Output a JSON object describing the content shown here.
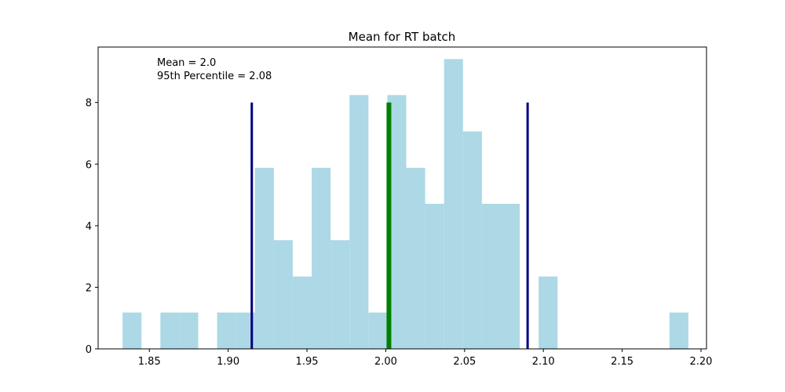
{
  "chart_data": {
    "type": "bar",
    "title": "Mean for RT batch",
    "xlabel": "",
    "ylabel": "",
    "xlim": [
      1.8175,
      2.2035
    ],
    "ylim": [
      0,
      9.8
    ],
    "xticks": [
      1.85,
      1.9,
      1.95,
      2.0,
      2.05,
      2.1,
      2.15,
      2.2
    ],
    "xtick_labels": [
      "1.85",
      "1.90",
      "1.95",
      "2.00",
      "2.05",
      "2.10",
      "2.15",
      "2.20"
    ],
    "yticks": [
      0,
      2,
      4,
      6,
      8
    ],
    "ytick_labels": [
      "0",
      "2",
      "4",
      "6",
      "8"
    ],
    "bar_color": "#add8e6",
    "histogram": {
      "bin_width": 0.012,
      "bins": [
        {
          "x0": 1.833,
          "value": 1.18
        },
        {
          "x0": 1.857,
          "value": 1.18
        },
        {
          "x0": 1.869,
          "value": 1.18
        },
        {
          "x0": 1.893,
          "value": 1.18
        },
        {
          "x0": 1.905,
          "value": 1.18
        },
        {
          "x0": 1.917,
          "value": 5.88
        },
        {
          "x0": 1.929,
          "value": 3.53
        },
        {
          "x0": 1.941,
          "value": 2.35
        },
        {
          "x0": 1.953,
          "value": 5.88
        },
        {
          "x0": 1.965,
          "value": 3.53
        },
        {
          "x0": 1.977,
          "value": 8.24
        },
        {
          "x0": 1.989,
          "value": 1.18
        },
        {
          "x0": 2.001,
          "value": 8.24
        },
        {
          "x0": 2.013,
          "value": 5.88
        },
        {
          "x0": 2.025,
          "value": 4.71
        },
        {
          "x0": 2.037,
          "value": 9.41
        },
        {
          "x0": 2.049,
          "value": 7.06
        },
        {
          "x0": 2.061,
          "value": 4.71
        },
        {
          "x0": 2.073,
          "value": 4.71
        },
        {
          "x0": 2.097,
          "value": 2.35
        },
        {
          "x0": 2.18,
          "value": 1.18
        }
      ]
    },
    "reference_lines": [
      {
        "x": 1.915,
        "y_top": 8.0,
        "color": "#000080",
        "width": 3
      },
      {
        "x": 2.002,
        "y_top": 8.0,
        "color": "#008000",
        "width": 6
      },
      {
        "x": 2.09,
        "y_top": 8.0,
        "color": "#000080",
        "width": 3
      }
    ],
    "annotations": [
      "Mean = 2.0",
      "95th Percentile = 2.08"
    ]
  }
}
